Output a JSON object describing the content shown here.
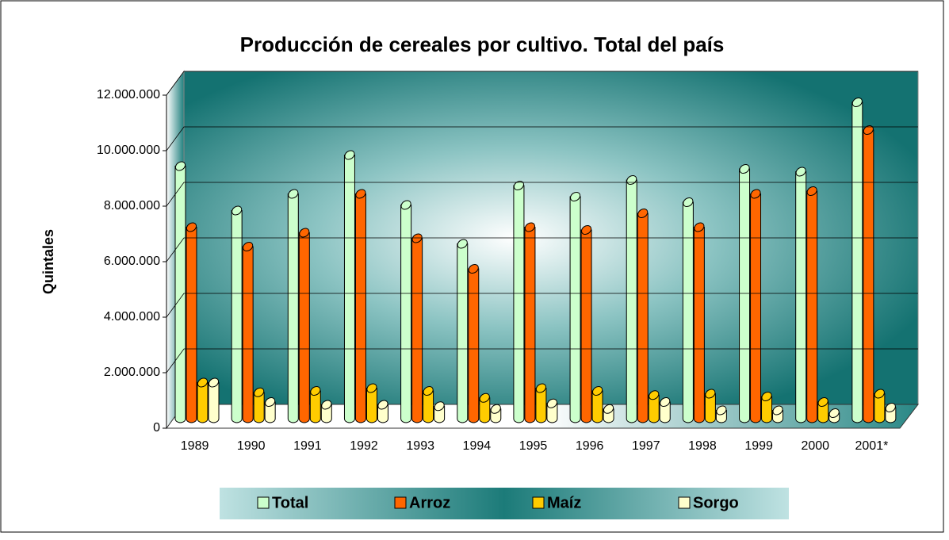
{
  "chart_data": {
    "type": "bar",
    "title": "Producción de cereales por cultivo. Total del país",
    "ylabel": "Quintales",
    "categories": [
      "1989",
      "1990",
      "1991",
      "1992",
      "1993",
      "1994",
      "1995",
      "1996",
      "1997",
      "1998",
      "1999",
      "2000",
      "2001*"
    ],
    "series": [
      {
        "name": "Total",
        "color": "#ccffcc",
        "values": [
          9100000,
          7500000,
          8100000,
          9500000,
          7700000,
          6300000,
          8400000,
          8000000,
          8600000,
          7800000,
          9000000,
          8900000,
          11400000
        ]
      },
      {
        "name": "Arroz",
        "color": "#ff6600",
        "values": [
          6900000,
          6200000,
          6700000,
          8100000,
          6500000,
          5400000,
          6900000,
          6800000,
          7400000,
          6900000,
          8100000,
          8200000,
          10400000
        ]
      },
      {
        "name": "Maíz",
        "color": "#ffcc00",
        "values": [
          1300000,
          950000,
          1000000,
          1100000,
          1000000,
          750000,
          1100000,
          1000000,
          850000,
          900000,
          800000,
          600000,
          900000
        ]
      },
      {
        "name": "Sorgo",
        "color": "#ffffcc",
        "values": [
          1300000,
          600000,
          500000,
          500000,
          450000,
          350000,
          550000,
          350000,
          600000,
          300000,
          300000,
          200000,
          400000
        ]
      }
    ],
    "ylim": [
      0,
      12000000
    ],
    "yticks": [
      0,
      {
        "value": 2000000,
        "label": "2.000.000"
      },
      {
        "value": 4000000,
        "label": "4.000.000"
      },
      {
        "value": 6000000,
        "label": "6.000.000"
      },
      {
        "value": 8000000,
        "label": "8.000.000"
      },
      {
        "value": 10000000,
        "label": "10.000.000"
      },
      {
        "value": 12000000,
        "label": "12.000.000"
      }
    ],
    "grid": true,
    "legend": "bottom"
  }
}
